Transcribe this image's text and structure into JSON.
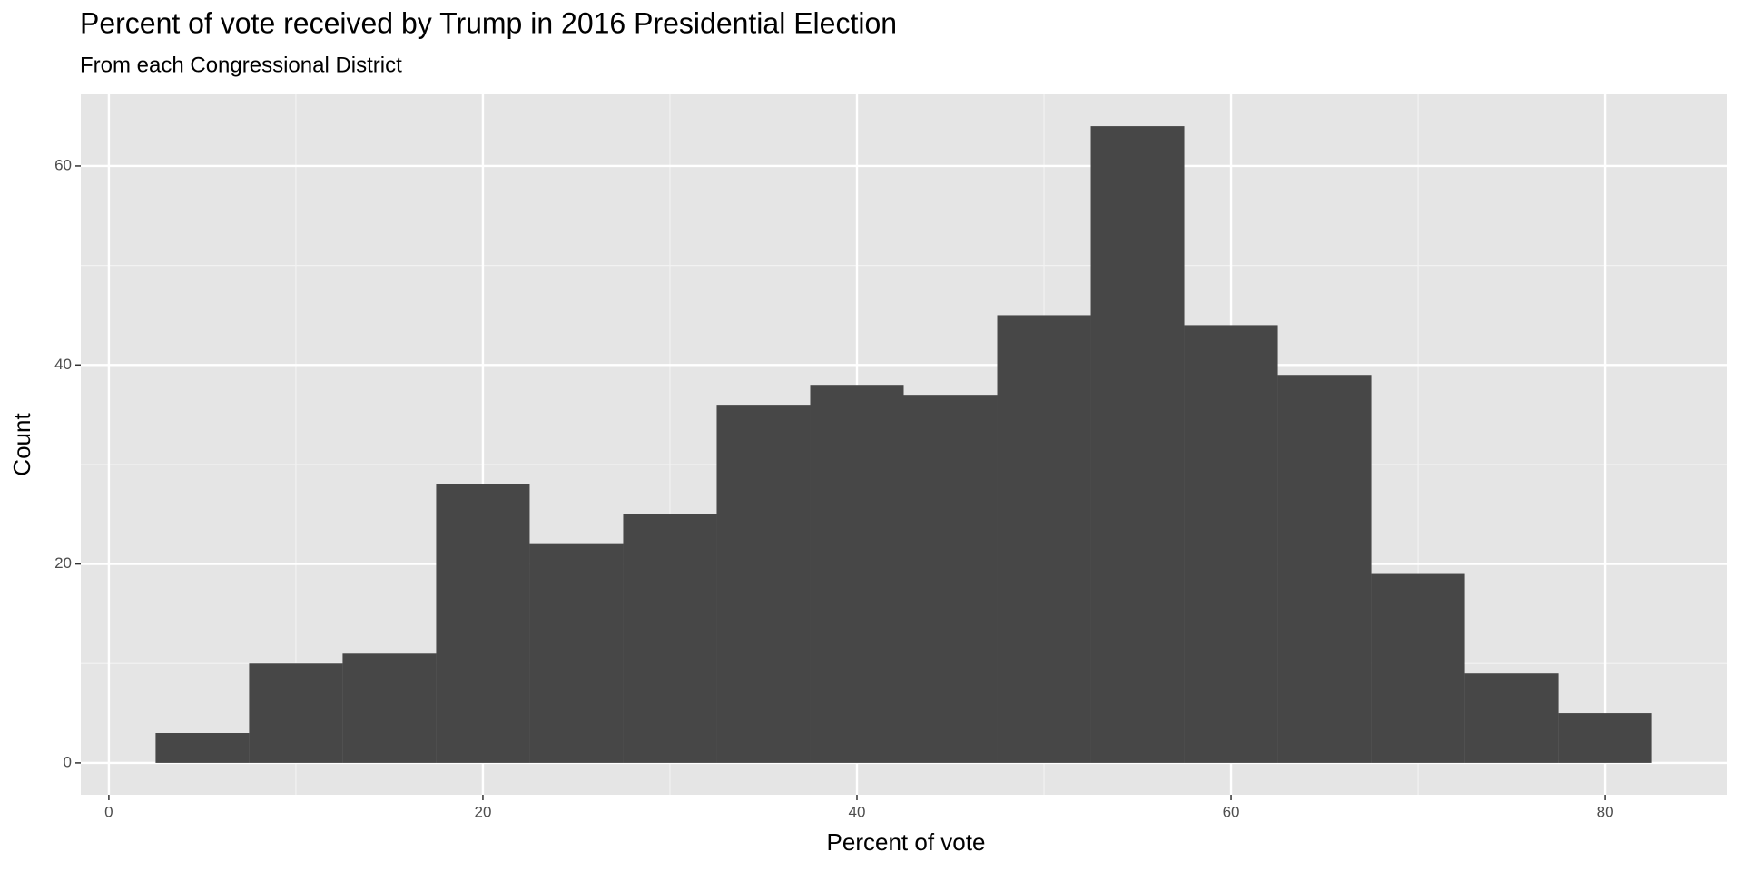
{
  "chart_data": {
    "type": "histogram",
    "title": "Percent of vote received by Trump in 2016 Presidential Election",
    "subtitle": "From each Congressional District",
    "x_label": "Percent of vote",
    "y_label": "Count",
    "bins": [
      2.5,
      7.5,
      12.5,
      17.5,
      22.5,
      27.5,
      32.5,
      37.5,
      42.5,
      47.5,
      52.5,
      57.5,
      62.5,
      67.5,
      72.5,
      77.5,
      82.5
    ],
    "values": [
      3,
      10,
      11,
      28,
      22,
      25,
      36,
      38,
      37,
      45,
      64,
      44,
      39,
      19,
      9,
      5
    ],
    "color": "#474747",
    "xlim": [
      -1.5,
      86.5
    ],
    "xticks": [
      0,
      20,
      40,
      60,
      80
    ],
    "x_minor_ticks": [
      10,
      30,
      50,
      70
    ],
    "ylim": [
      -3.2,
      67.2
    ],
    "yticks": [
      0,
      20,
      40,
      60
    ],
    "y_minor_ticks": [
      10,
      30,
      50
    ],
    "grid": true
  }
}
